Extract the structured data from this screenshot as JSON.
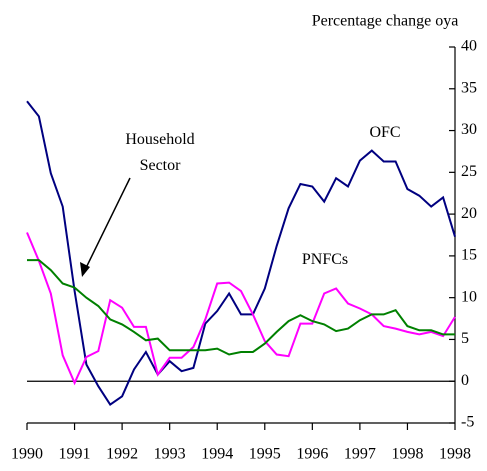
{
  "chart_data": {
    "type": "line",
    "y_axis_label": "Percentage change oya",
    "categories": [
      "1990",
      null,
      null,
      null,
      "1991",
      null,
      null,
      null,
      "1992",
      null,
      null,
      null,
      "1993",
      null,
      null,
      null,
      "1994",
      null,
      null,
      null,
      "1995",
      null,
      null,
      null,
      "1996",
      null,
      null,
      null,
      "1997",
      null,
      null,
      null,
      "1998",
      null,
      null,
      null,
      "1998"
    ],
    "series": [
      {
        "name": "OFC",
        "color": "#000080",
        "values": [
          33.5,
          31.7,
          24.9,
          20.9,
          10.8,
          2,
          -0.6,
          -2.8,
          -1.8,
          1.4,
          3.5,
          0.8,
          2.4,
          1.2,
          1.6,
          6.9,
          8.4,
          10.5,
          8,
          8,
          11.1,
          16.2,
          20.7,
          23.6,
          23.3,
          21.5,
          24.3,
          23.3,
          26.4,
          27.6,
          26.3,
          26.3,
          23,
          22.2,
          20.9,
          22,
          17.3
        ]
      },
      {
        "name": "PNFCs",
        "color": "#ff00ff",
        "values": [
          17.8,
          14.4,
          10.5,
          3.1,
          -0.2,
          2.9,
          3.6,
          9.7,
          8.8,
          6.5,
          6.5,
          0.8,
          2.8,
          2.8,
          4.1,
          7.4,
          11.7,
          11.8,
          10.8,
          8,
          4.8,
          3.2,
          3,
          6.9,
          6.9,
          10.5,
          11.1,
          9.3,
          8.7,
          8,
          6.6,
          6.3,
          5.9,
          5.6,
          5.9,
          5.4,
          7.7
        ]
      },
      {
        "name": "Household Sector",
        "color": "#008000",
        "values": [
          14.5,
          14.5,
          13.3,
          11.7,
          11.2,
          10,
          9,
          7.4,
          6.8,
          5.9,
          4.9,
          5.1,
          3.7,
          3.7,
          3.7,
          3.7,
          3.9,
          3.2,
          3.5,
          3.5,
          4.5,
          5.9,
          7.2,
          7.9,
          7.2,
          6.8,
          6,
          6.3,
          7.3,
          8,
          8,
          8.5,
          6.6,
          6.1,
          6.1,
          5.6,
          5.6
        ]
      }
    ],
    "ylim": [
      -5,
      40
    ],
    "yticks": [
      -5,
      0,
      5,
      10,
      15,
      20,
      25,
      30,
      35,
      40
    ],
    "zero_line": true
  }
}
